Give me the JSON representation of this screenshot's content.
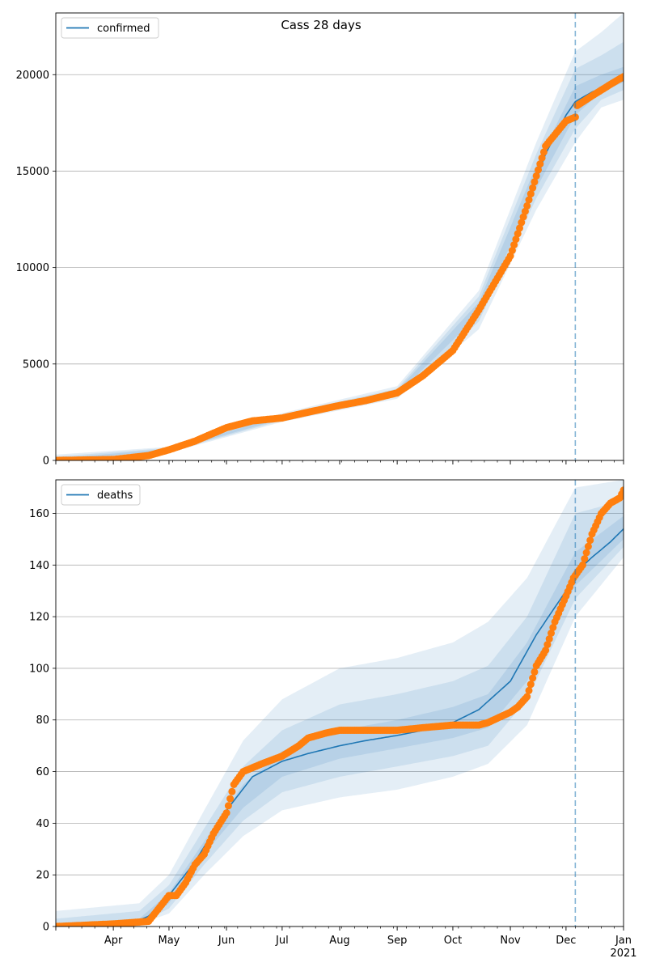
{
  "figure": {
    "title": "Cass 28 days",
    "x_tick_labels": [
      "Apr",
      "May",
      "Jun",
      "Jul",
      "Aug",
      "Sep",
      "Oct",
      "Nov",
      "Dec",
      "Jan"
    ],
    "x_year_label": "2021",
    "colors": {
      "model": "#1f77b4",
      "observed": "#ff7f0e",
      "grid": "#b0b0b0",
      "band": "#1f77b4"
    }
  },
  "chart_data": [
    {
      "type": "line",
      "name": "confirmed",
      "x_axis": {
        "type": "date",
        "range": [
          "2020-03-01",
          "2021-01-01"
        ]
      },
      "ylim": [
        0,
        23200
      ],
      "y_ticks": [
        0,
        5000,
        10000,
        15000,
        20000
      ],
      "grid": "horizontal",
      "legend": {
        "placement": "top-left",
        "entries": [
          "confirmed"
        ]
      },
      "forecast_start": "2020-12-06",
      "series": [
        {
          "name": "confirmed",
          "style": "line",
          "x": [
            "2020-03-01",
            "2020-04-01",
            "2020-04-20",
            "2020-05-01",
            "2020-05-15",
            "2020-06-01",
            "2020-06-15",
            "2020-07-01",
            "2020-07-15",
            "2020-08-01",
            "2020-08-15",
            "2020-09-01",
            "2020-09-15",
            "2020-10-01",
            "2020-10-15",
            "2020-11-01",
            "2020-11-10",
            "2020-11-20",
            "2020-12-01",
            "2020-12-06",
            "2020-12-15",
            "2020-12-25",
            "2021-01-01"
          ],
          "y": [
            0,
            50,
            250,
            550,
            1000,
            1750,
            2050,
            2250,
            2500,
            2850,
            3050,
            3500,
            4400,
            5800,
            7900,
            10800,
            13200,
            15900,
            17900,
            18600,
            19100,
            19500,
            19700
          ]
        },
        {
          "name": "observed confirmed",
          "style": "scatter",
          "x": [
            "2020-03-01",
            "2020-04-01",
            "2020-04-20",
            "2020-05-01",
            "2020-05-15",
            "2020-06-01",
            "2020-06-15",
            "2020-07-01",
            "2020-07-15",
            "2020-08-01",
            "2020-08-15",
            "2020-09-01",
            "2020-09-15",
            "2020-10-01",
            "2020-10-15",
            "2020-11-01",
            "2020-11-10",
            "2020-11-20",
            "2020-12-01",
            "2020-12-06",
            "2020-12-07",
            "2020-12-15",
            "2020-12-25",
            "2021-01-01"
          ],
          "y": [
            0,
            50,
            250,
            550,
            1000,
            1700,
            2050,
            2200,
            2500,
            2850,
            3100,
            3500,
            4400,
            5700,
            7800,
            10600,
            13200,
            16300,
            17600,
            17800,
            18400,
            18900,
            19500,
            19900
          ]
        }
      ],
      "bands": [
        {
          "level": "outer",
          "x": [
            "2020-03-01",
            "2020-05-01",
            "2020-07-01",
            "2020-09-01",
            "2020-10-15",
            "2020-11-15",
            "2020-12-06",
            "2020-12-20",
            "2021-01-01"
          ],
          "low": [
            0,
            400,
            2000,
            3200,
            6800,
            13000,
            16500,
            18300,
            18700
          ],
          "high": [
            300,
            700,
            2450,
            3850,
            8800,
            16500,
            21200,
            22200,
            23200
          ]
        },
        {
          "level": "middle",
          "x": [
            "2020-03-01",
            "2020-05-01",
            "2020-07-01",
            "2020-09-01",
            "2020-10-15",
            "2020-11-15",
            "2020-12-06",
            "2020-12-20",
            "2021-01-01"
          ],
          "low": [
            0,
            450,
            2080,
            3330,
            7200,
            13600,
            17200,
            18700,
            19200
          ],
          "high": [
            200,
            650,
            2380,
            3720,
            8500,
            15900,
            20300,
            21000,
            21700
          ]
        },
        {
          "level": "inner",
          "x": [
            "2020-03-01",
            "2020-05-01",
            "2020-07-01",
            "2020-09-01",
            "2020-10-15",
            "2020-11-15",
            "2020-12-06",
            "2020-12-20",
            "2021-01-01"
          ],
          "low": [
            0,
            500,
            2150,
            3420,
            7550,
            14100,
            17900,
            19100,
            19600
          ],
          "high": [
            100,
            600,
            2320,
            3620,
            8200,
            15300,
            19400,
            20000,
            20400
          ]
        }
      ]
    },
    {
      "type": "line",
      "name": "deaths",
      "x_axis": {
        "type": "date",
        "range": [
          "2020-03-01",
          "2021-01-01"
        ]
      },
      "ylim": [
        0,
        173
      ],
      "y_ticks": [
        0,
        20,
        40,
        60,
        80,
        100,
        120,
        140,
        160
      ],
      "grid": "horizontal",
      "legend": {
        "placement": "top-left",
        "entries": [
          "deaths"
        ]
      },
      "forecast_start": "2020-12-06",
      "series": [
        {
          "name": "deaths",
          "style": "line",
          "x": [
            "2020-03-01",
            "2020-04-10",
            "2020-04-20",
            "2020-05-01",
            "2020-05-15",
            "2020-06-01",
            "2020-06-15",
            "2020-07-01",
            "2020-07-15",
            "2020-08-01",
            "2020-08-15",
            "2020-09-01",
            "2020-09-15",
            "2020-10-01",
            "2020-10-15",
            "2020-11-01",
            "2020-11-15",
            "2020-12-01",
            "2020-12-06",
            "2020-12-15",
            "2020-12-25",
            "2021-01-01"
          ],
          "y": [
            0,
            1,
            4,
            12,
            25,
            45,
            58,
            64,
            67,
            70,
            72,
            74,
            76,
            79,
            84,
            95,
            113,
            130,
            137,
            143,
            149,
            154
          ]
        },
        {
          "name": "observed deaths",
          "style": "scatter",
          "x": [
            "2020-03-01",
            "2020-04-01",
            "2020-04-20",
            "2020-05-01",
            "2020-05-05",
            "2020-05-10",
            "2020-05-15",
            "2020-05-20",
            "2020-05-25",
            "2020-06-01",
            "2020-06-05",
            "2020-06-10",
            "2020-06-20",
            "2020-07-01",
            "2020-07-10",
            "2020-07-15",
            "2020-07-25",
            "2020-08-01",
            "2020-09-01",
            "2020-09-15",
            "2020-10-01",
            "2020-10-15",
            "2020-10-20",
            "2020-11-01",
            "2020-11-05",
            "2020-11-10",
            "2020-11-15",
            "2020-11-20",
            "2020-11-25",
            "2020-12-01",
            "2020-12-05",
            "2020-12-10",
            "2020-12-15",
            "2020-12-20",
            "2020-12-25",
            "2020-12-30",
            "2021-01-01"
          ],
          "y": [
            0,
            1,
            2,
            12,
            12,
            17,
            24,
            28,
            36,
            44,
            55,
            60,
            63,
            66,
            70,
            73,
            75,
            76,
            76,
            77,
            78,
            78,
            79,
            83,
            85,
            89,
            101,
            107,
            118,
            128,
            135,
            140,
            152,
            160,
            164,
            166,
            169
          ]
        }
      ],
      "bands": [
        {
          "level": "outer",
          "x": [
            "2020-03-01",
            "2020-04-15",
            "2020-05-01",
            "2020-05-20",
            "2020-06-10",
            "2020-07-01",
            "2020-08-01",
            "2020-09-01",
            "2020-10-01",
            "2020-10-20",
            "2020-11-10",
            "2020-12-06",
            "2021-01-01"
          ],
          "low": [
            0,
            1,
            5,
            20,
            35,
            45,
            50,
            53,
            58,
            63,
            78,
            120,
            143
          ],
          "high": [
            6,
            9,
            20,
            45,
            72,
            88,
            100,
            104,
            110,
            118,
            135,
            170,
            173
          ]
        },
        {
          "level": "middle",
          "x": [
            "2020-03-01",
            "2020-04-15",
            "2020-05-01",
            "2020-05-20",
            "2020-06-10",
            "2020-07-01",
            "2020-08-01",
            "2020-09-01",
            "2020-10-01",
            "2020-10-20",
            "2020-11-10",
            "2020-12-06",
            "2021-01-01"
          ],
          "low": [
            0,
            1,
            7,
            24,
            41,
            52,
            58,
            62,
            66,
            70,
            88,
            127,
            147
          ],
          "high": [
            3,
            6,
            16,
            38,
            62,
            76,
            86,
            90,
            95,
            101,
            120,
            160,
            165
          ]
        },
        {
          "level": "inner",
          "x": [
            "2020-03-01",
            "2020-04-15",
            "2020-05-01",
            "2020-05-20",
            "2020-06-10",
            "2020-07-01",
            "2020-08-01",
            "2020-09-01",
            "2020-10-01",
            "2020-10-20",
            "2020-11-10",
            "2020-12-06",
            "2021-01-01"
          ],
          "low": [
            0,
            1,
            9,
            28,
            46,
            58,
            65,
            69,
            73,
            77,
            95,
            132,
            150
          ],
          "high": [
            1,
            3,
            13,
            33,
            55,
            68,
            76,
            80,
            85,
            90,
            110,
            145,
            159
          ]
        }
      ]
    }
  ]
}
